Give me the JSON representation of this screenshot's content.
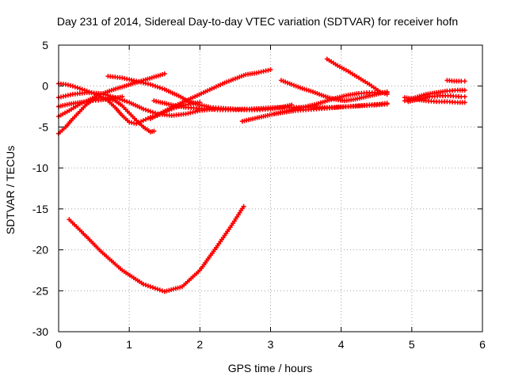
{
  "chart_data": {
    "type": "scatter",
    "title": "Day 231 of 2014, Sidereal Day-to-day VTEC variation (SDTVAR) for receiver hofn",
    "xlabel": "GPS time / hours",
    "ylabel": "SDTVAR / TECUs",
    "xlim": [
      0,
      6
    ],
    "ylim": [
      -30,
      5
    ],
    "x_ticks": [
      0,
      1,
      2,
      3,
      4,
      5,
      6
    ],
    "y_ticks": [
      -30,
      -25,
      -20,
      -15,
      -10,
      -5,
      0,
      5
    ],
    "x_tick_labels": [
      "0",
      "1",
      "2",
      "3",
      "4",
      "5",
      "6"
    ],
    "y_tick_labels": [
      "-30",
      "-25",
      "-20",
      "-15",
      "-10",
      "-5",
      "0",
      "5"
    ],
    "grid": true,
    "legend": "none",
    "marker": "plus",
    "color": "#ff0000",
    "series": [
      {
        "x": [
          0.15,
          0.35,
          0.6,
          0.9,
          1.2,
          1.5,
          1.75,
          2.0,
          2.25,
          2.45,
          2.62
        ],
        "y": [
          -16.3,
          -18.0,
          -20.2,
          -22.5,
          -24.2,
          -25.1,
          -24.5,
          -22.5,
          -19.5,
          -17.0,
          -14.7
        ]
      },
      {
        "x": [
          0.0,
          0.1,
          0.2,
          0.3,
          0.4,
          0.5,
          0.6,
          0.7,
          0.8,
          0.9,
          1.0,
          1.1,
          1.2,
          1.3,
          1.35
        ],
        "y": [
          -5.8,
          -5.0,
          -4.0,
          -3.1,
          -2.2,
          -1.6,
          -1.4,
          -1.5,
          -1.8,
          -2.4,
          -3.3,
          -4.2,
          -5.0,
          -5.6,
          -5.5
        ]
      },
      {
        "x": [
          0.0,
          0.15,
          0.3,
          0.45,
          0.6,
          0.75,
          0.9,
          1.05,
          1.2,
          1.35,
          1.5
        ],
        "y": [
          -3.7,
          -3.0,
          -2.2,
          -1.6,
          -1.0,
          -0.5,
          -0.1,
          0.3,
          0.7,
          1.1,
          1.5
        ]
      },
      {
        "x": [
          0.0,
          0.2,
          0.4,
          0.6,
          0.8,
          1.0,
          1.2,
          1.4,
          1.6,
          1.8,
          2.0,
          2.2
        ],
        "y": [
          -1.4,
          -1.0,
          -0.8,
          -0.9,
          -1.4,
          -2.0,
          -2.8,
          -3.4,
          -3.6,
          -3.4,
          -3.0,
          -2.8
        ]
      },
      {
        "x": [
          0.0,
          0.1,
          0.2,
          0.3,
          0.4,
          0.5,
          0.6,
          0.7,
          0.8,
          0.9,
          1.0,
          1.1,
          1.2,
          1.3,
          1.4,
          1.5,
          1.6,
          1.7,
          1.8,
          1.9,
          2.0
        ],
        "y": [
          0.3,
          0.2,
          0.0,
          -0.3,
          -0.6,
          -0.9,
          -1.3,
          -1.8,
          -2.6,
          -3.6,
          -4.4,
          -4.6,
          -4.2,
          -3.8,
          -3.6,
          -3.2,
          -2.8,
          -2.5,
          -2.3,
          -2.1,
          -2.0
        ]
      },
      {
        "x": [
          0.0,
          0.15,
          0.3,
          0.45,
          0.6,
          0.75,
          0.9
        ],
        "y": [
          -2.5,
          -2.2,
          -2.0,
          -1.8,
          -1.7,
          -1.5,
          -1.3
        ]
      },
      {
        "x": [
          0.7,
          0.9,
          1.1,
          1.3,
          1.5,
          1.7,
          1.85,
          2.0,
          2.15,
          2.3,
          2.5,
          2.7,
          2.9,
          3.1,
          3.3,
          3.5,
          3.7,
          3.9,
          4.1,
          4.3,
          4.5,
          4.65
        ],
        "y": [
          1.2,
          1.0,
          0.6,
          0.2,
          -0.4,
          -1.2,
          -1.9,
          -2.3,
          -2.6,
          -2.7,
          -2.8,
          -2.8,
          -2.7,
          -2.6,
          -2.6,
          -2.6,
          -2.6,
          -2.6,
          -2.5,
          -2.4,
          -2.3,
          -2.2
        ]
      },
      {
        "x": [
          1.3,
          1.45,
          1.6,
          1.75,
          1.9,
          2.05,
          2.2,
          2.35,
          2.5,
          2.65,
          2.8,
          3.0
        ],
        "y": [
          -4.0,
          -3.3,
          -2.6,
          -2.0,
          -1.4,
          -0.8,
          -0.2,
          0.4,
          0.9,
          1.4,
          1.6,
          2.0
        ]
      },
      {
        "x": [
          1.35,
          1.5,
          1.65,
          1.8,
          1.95,
          2.1,
          2.25,
          2.4,
          2.55,
          2.7,
          2.85,
          3.0,
          3.15,
          3.3
        ],
        "y": [
          -1.8,
          -2.1,
          -2.4,
          -2.6,
          -2.7,
          -2.8,
          -2.9,
          -2.9,
          -2.9,
          -2.9,
          -2.9,
          -2.8,
          -2.6,
          -2.3
        ]
      },
      {
        "x": [
          2.6,
          2.75,
          2.9,
          3.05,
          3.2,
          3.35,
          3.5,
          3.65,
          3.8,
          3.95,
          4.1,
          4.25,
          4.4,
          4.55,
          4.65
        ],
        "y": [
          -4.3,
          -4.0,
          -3.7,
          -3.4,
          -3.1,
          -2.8,
          -2.5,
          -2.2,
          -1.8,
          -1.4,
          -1.1,
          -0.9,
          -0.8,
          -0.8,
          -0.8
        ]
      },
      {
        "x": [
          3.05,
          3.2,
          3.35,
          3.5,
          3.65,
          3.8,
          3.95,
          4.1,
          4.25,
          4.4,
          4.55,
          4.65
        ],
        "y": [
          -3.4,
          -3.2,
          -3.0,
          -2.9,
          -2.8,
          -2.7,
          -2.6,
          -2.5,
          -2.4,
          -2.3,
          -2.2,
          -2.1
        ]
      },
      {
        "x": [
          3.15,
          3.3,
          3.45,
          3.6,
          3.75,
          3.9,
          4.05,
          4.2,
          4.35,
          4.5,
          4.65
        ],
        "y": [
          0.7,
          0.2,
          -0.3,
          -0.7,
          -1.2,
          -1.6,
          -1.8,
          -1.6,
          -1.3,
          -1.0,
          -0.7
        ]
      },
      {
        "x": [
          3.8,
          3.95,
          4.1,
          4.25,
          4.4,
          4.55,
          4.65
        ],
        "y": [
          3.3,
          2.5,
          1.8,
          1.0,
          0.2,
          -0.7,
          -1.0
        ]
      },
      {
        "x": [
          4.9,
          5.05,
          5.2,
          5.35,
          5.5,
          5.65,
          5.75
        ],
        "y": [
          -1.8,
          -1.4,
          -1.0,
          -0.8,
          -0.6,
          -0.5,
          -0.5
        ]
      },
      {
        "x": [
          4.9,
          5.05,
          5.2,
          5.35,
          5.5,
          5.65,
          5.75
        ],
        "y": [
          -1.4,
          -1.6,
          -1.8,
          -1.9,
          -1.9,
          -2.0,
          -2.0
        ]
      },
      {
        "x": [
          4.95,
          5.1,
          5.25,
          5.4,
          5.55,
          5.7,
          5.75
        ],
        "y": [
          -1.9,
          -1.6,
          -1.3,
          -1.2,
          -1.2,
          -1.3,
          -1.3
        ]
      },
      {
        "x": [
          5.5,
          5.6,
          5.7,
          5.75
        ],
        "y": [
          0.7,
          0.6,
          0.6,
          0.6
        ]
      }
    ]
  }
}
